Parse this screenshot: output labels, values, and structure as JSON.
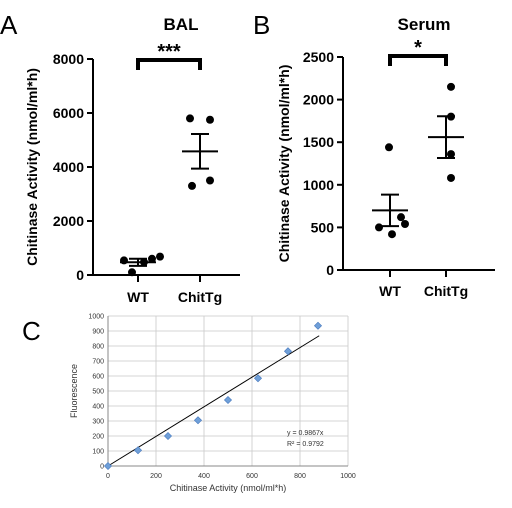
{
  "chart_data": [
    {
      "panel": "A",
      "type": "scatter",
      "title": "BAL",
      "ylabel": "Chitinase Activity (nmol/ml*h)",
      "ylim": [
        0,
        8000
      ],
      "yticks": [
        0,
        2000,
        4000,
        6000,
        8000
      ],
      "categories": [
        "WT",
        "ChitTg"
      ],
      "points": [
        [
          540,
          100,
          480,
          600,
          680
        ],
        [
          5800,
          5750,
          3300,
          3500
        ]
      ],
      "mean": [
        470,
        4580
      ],
      "sem": [
        130,
        640
      ],
      "significance": "***"
    },
    {
      "panel": "B",
      "type": "scatter",
      "title": "Serum",
      "ylabel": "Chitinase Activity (nmol/ml*h)",
      "ylim": [
        0,
        2500
      ],
      "yticks": [
        0,
        500,
        1000,
        1500,
        2000,
        2500
      ],
      "categories": [
        "WT",
        "ChitTg"
      ],
      "points": [
        [
          1440,
          620,
          540,
          500,
          420
        ],
        [
          2150,
          1800,
          1360,
          1080
        ]
      ],
      "mean": [
        700,
        1560
      ],
      "sem": [
        185,
        245
      ],
      "significance": "*"
    },
    {
      "panel": "C",
      "type": "scatter",
      "xlabel": "Chitinase Activity (nmol/ml*h)",
      "ylabel": "Fluorescence",
      "xlim": [
        0,
        1000
      ],
      "ylim": [
        0,
        1000
      ],
      "xticks": [
        0,
        200,
        400,
        600,
        800,
        1000
      ],
      "yticks": [
        0,
        100,
        200,
        300,
        400,
        500,
        600,
        700,
        800,
        900,
        1000
      ],
      "grid": true,
      "x": [
        0,
        125,
        250,
        375,
        500,
        625,
        750,
        875
      ],
      "y": [
        0,
        105,
        200,
        305,
        440,
        585,
        765,
        935
      ],
      "trendline": {
        "slope": 0.9867,
        "equation": "y = 0.9867x",
        "r2": "R² = 0.9792"
      },
      "marker_color": "#6f9fd8"
    }
  ]
}
